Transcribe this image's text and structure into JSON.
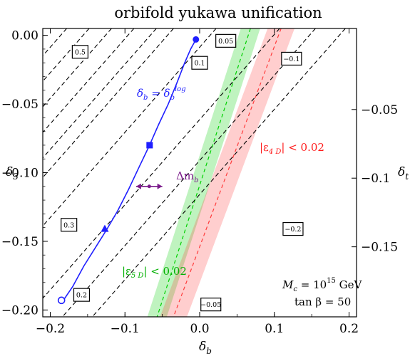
{
  "chart_data": {
    "type": "line",
    "title": "orbifold yukawa unification",
    "xlabel": "δ_b",
    "ylabel_left": "δ_3",
    "ylabel_right": "δ_t",
    "xlim": [
      -0.21,
      0.21
    ],
    "ylim_left": [
      -0.205,
      0.005
    ],
    "x_ticks": [
      "−0.2",
      "−0.1",
      "0.0",
      "0.1",
      "0.2"
    ],
    "x_tick_values": [
      -0.2,
      -0.1,
      0.0,
      0.1,
      0.2
    ],
    "y_ticks_left": [
      "0.00",
      "−0.05",
      "−0.10",
      "−0.15",
      "−0.20"
    ],
    "y_tick_values_left": [
      0.0,
      -0.05,
      -0.1,
      -0.15,
      -0.2
    ],
    "y_ticks_right": [
      "−0.05",
      "−0.1",
      "−0.15"
    ],
    "y_tick_values_right_mapped": [
      -0.05,
      -0.1,
      -0.15
    ],
    "contour_slope": 0.62,
    "contours": [
      {
        "label": "0.5",
        "x_at_top": -0.178,
        "label_at": [
          -0.16,
          -0.012
        ]
      },
      {
        "label": "0.3",
        "x_at_top": -0.148
      },
      {
        "label": "0.2",
        "x_at_top": -0.118,
        "label_at": [
          -0.158,
          -0.189
        ]
      },
      {
        "label": "0.1",
        "x_at_top": -0.088
      },
      {
        "label": "0.3",
        "x_at_top": -0.058,
        "label_at": [
          -0.175,
          -0.138
        ]
      },
      {
        "label": "0.1",
        "x_at_top": -0.035,
        "label_at": [
          0.0,
          -0.02
        ]
      },
      {
        "label": "0.05",
        "x_at_top": 0.022,
        "label_at": [
          0.035,
          -0.004
        ]
      },
      {
        "label": "−0.05",
        "x_at_top": 0.107,
        "label_at": [
          0.015,
          -0.196
        ]
      },
      {
        "label": "−0.1",
        "x_at_top": 0.155,
        "label_at": [
          0.123,
          -0.017
        ]
      },
      {
        "label": "−0.2",
        "x_at_top": 0.195,
        "label_at": [
          0.125,
          -0.141
        ]
      }
    ],
    "bands": [
      {
        "name": "|ε_5D| < 0.02",
        "color": "#00d000",
        "center_top": 0.068,
        "center_bottom": -0.057,
        "half_width": 0.013
      },
      {
        "name": "|ε_4D| < 0.02",
        "color": "#ff3b3b",
        "center_top": 0.109,
        "center_bottom": -0.035,
        "half_width": 0.018
      }
    ],
    "blue_curve": {
      "name": "δ_b = δ_b^log",
      "color": "#1f1fff",
      "x": [
        -0.185,
        -0.17,
        -0.155,
        -0.14,
        -0.125,
        -0.11,
        -0.095,
        -0.082,
        -0.068,
        -0.055,
        -0.042,
        -0.03,
        -0.02,
        -0.012,
        -0.006,
        -0.002
      ],
      "y": [
        -0.195,
        -0.183,
        -0.168,
        -0.155,
        -0.142,
        -0.128,
        -0.112,
        -0.097,
        -0.081,
        -0.065,
        -0.05,
        -0.034,
        -0.02,
        -0.01,
        -0.004,
        -0.002
      ],
      "markers": [
        {
          "shape": "open-circle",
          "x": -0.185,
          "y": -0.193
        },
        {
          "shape": "triangle",
          "x": -0.127,
          "y": -0.141
        },
        {
          "shape": "square",
          "x": -0.067,
          "y": -0.08
        },
        {
          "shape": "circle",
          "x": -0.005,
          "y": -0.003
        }
      ]
    },
    "delta_m_arrow": {
      "label": "Δm_b",
      "color": "#7a1a8a",
      "x_from": -0.085,
      "x_to": -0.05,
      "y": -0.11
    }
  },
  "labels": {
    "blue_curve": {
      "pre": "δ",
      "sub": "b",
      "mid": " = δ",
      "sub2": "b",
      "sup": "log"
    },
    "eps4d": {
      "pre": "|ε",
      "sub": "4 D",
      "post": "| < 0.02"
    },
    "eps5d": {
      "pre": "|ε",
      "sub": "5 D",
      "post": "| < 0.02"
    },
    "delta_m": {
      "pre": "Δm",
      "sub": "b"
    },
    "mc": {
      "pre": "M",
      "sub": "c",
      "mid": " = 10",
      "sup": "15",
      "post": " GeV"
    },
    "tanb": "tan β = 50",
    "xaxis": {
      "pre": "δ",
      "sub": "b"
    },
    "yleft": {
      "pre": "δ",
      "sub": "3"
    },
    "yright": {
      "pre": "δ",
      "sub": "t"
    }
  },
  "colors": {
    "blue": "#1f1fff",
    "green_text": "#00b000",
    "red_text": "#ff1a1a",
    "purple": "#7a1a8a"
  }
}
